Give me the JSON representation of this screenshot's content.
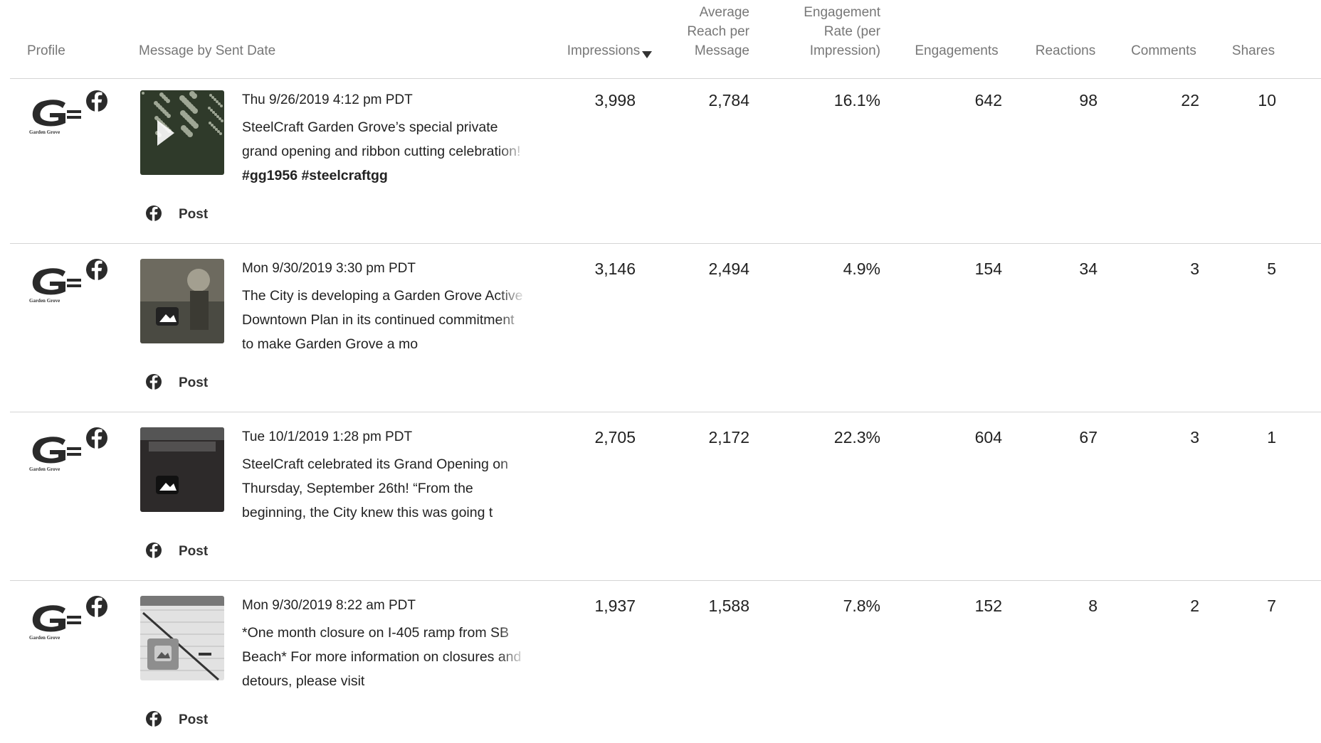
{
  "header": {
    "columns": [
      {
        "lines": [
          "Profile"
        ]
      },
      {
        "lines": [
          "Message by Sent Date"
        ]
      },
      {
        "lines": [
          "Impressions"
        ]
      },
      {
        "lines": [
          "Average",
          "Reach per",
          "Message"
        ]
      },
      {
        "lines": [
          "Engagement",
          "Rate (per",
          "Impression)"
        ]
      },
      {
        "lines": [
          "Engagements"
        ]
      },
      {
        "lines": [
          "Reactions"
        ]
      },
      {
        "lines": [
          "Comments"
        ]
      },
      {
        "lines": [
          "Shares"
        ]
      }
    ]
  },
  "table": {
    "rows": [
      {
        "logo_text": "Garden Grove",
        "date": "Thu 9/26/2019 4:12 pm PDT",
        "message": "SteelCraft Garden Grove’s special private grand opening and ribbon cutting celebration! ",
        "message_bold": "#gg1956 #steelcraftgg",
        "post_type": "Post",
        "cells": [
          "3,998",
          "2,784",
          "16.1%",
          "642",
          "98",
          "22",
          "10"
        ]
      },
      {
        "logo_text": "Garden Grove",
        "date": "Mon 9/30/2019 3:30 pm PDT",
        "message": "The City is developing a Garden Grove Active Downtown Plan in its continued commitment to make Garden Grove a mo",
        "post_type": "Post",
        "cells": [
          "3,146",
          "2,494",
          "4.9%",
          "154",
          "34",
          "3",
          "5"
        ]
      },
      {
        "logo_text": "Garden Grove",
        "date": "Tue 10/1/2019 1:28 pm PDT",
        "message": "SteelCraft celebrated its Grand Opening on Thursday, September 26th! “From the beginning, the City knew this was going t",
        "post_type": "Post",
        "cells": [
          "2,705",
          "2,172",
          "22.3%",
          "604",
          "67",
          "3",
          "1"
        ]
      },
      {
        "logo_text": "Garden Grove",
        "date": "Mon 9/30/2019 8:22 am PDT",
        "message": "*One month closure on I-405 ramp from SB Beach* For more information on closures and detours, please visit",
        "post_type": "Post",
        "cells": [
          "1,937",
          "1,588",
          "7.8%",
          "152",
          "8",
          "2",
          "7"
        ]
      }
    ]
  }
}
